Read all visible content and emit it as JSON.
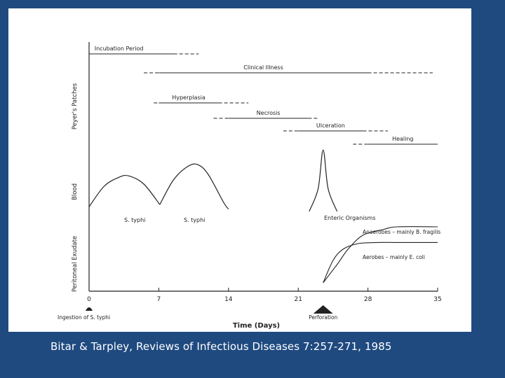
{
  "colors": {
    "background": "#1f4a80",
    "panel": "#ffffff",
    "ink": "#222222",
    "citation_text": "#ffffff"
  },
  "citation": "Bitar & Tarpley, Reviews of Infectious Diseases 7:257-271, 1985",
  "chart_data": {
    "type": "line",
    "title": "",
    "xlabel": "Time (Days)",
    "xlim": [
      0,
      35
    ],
    "x_ticks": [
      0,
      7,
      14,
      21,
      28,
      35
    ],
    "grid": false,
    "legend": "none",
    "panels": [
      {
        "name": "Peyer's Patches",
        "bars": [
          {
            "label": "Incubation Period",
            "solid": [
              0,
              8.5
            ],
            "dashed": [
              8.5,
              11
            ]
          },
          {
            "label": "Clinical Illness",
            "dashed_start": [
              5.5,
              7
            ],
            "solid": [
              7,
              28
            ],
            "dashed": [
              28,
              34.5
            ]
          },
          {
            "label": "Hyperplasia",
            "dashed_start": [
              6.5,
              7
            ],
            "solid": [
              7,
              13
            ],
            "dashed": [
              13,
              16
            ]
          },
          {
            "label": "Necrosis",
            "dashed_start": [
              12.5,
              14
            ],
            "solid": [
              14,
              22
            ],
            "dashed": [
              22,
              23
            ]
          },
          {
            "label": "Ulceration",
            "dashed_start": [
              19.5,
              21
            ],
            "solid": [
              21,
              27.5
            ],
            "dashed": [
              27.5,
              30
            ]
          },
          {
            "label": "Healing",
            "dashed_start": [
              26.5,
              28
            ],
            "solid": [
              28,
              35
            ]
          }
        ]
      },
      {
        "name": "Blood",
        "series": [
          {
            "label": "S. typhi",
            "x": [
              0,
              1.5,
              3,
              4,
              5.5,
              7.1
            ],
            "y": [
              0.1,
              0.55,
              0.75,
              0.78,
              0.6,
              0.15
            ]
          },
          {
            "label": "S. typhi",
            "x": [
              7.1,
              8.5,
              10,
              11,
              12,
              13.5,
              14
            ],
            "y": [
              0.15,
              0.7,
              1.0,
              1.02,
              0.8,
              0.2,
              0.05
            ]
          },
          {
            "label": "Enteric Organisms",
            "x": [
              22.1,
              23,
              23.5,
              24,
              24.9
            ],
            "y": [
              0.0,
              0.5,
              1.35,
              0.5,
              0.0
            ]
          }
        ]
      },
      {
        "name": "Peritoneal Exudate",
        "series": [
          {
            "label": "Anaerobes – mainly B. fragilis",
            "x": [
              23.5,
              25,
              26,
              27.5,
              29.5,
              31,
              35
            ],
            "y": [
              0.0,
              0.35,
              0.6,
              0.85,
              0.95,
              1.0,
              1.0
            ]
          },
          {
            "label": "Aerobes – mainly E. coli",
            "x": [
              23.5,
              24.5,
              25.5,
              27,
              29,
              31,
              35
            ],
            "y": [
              0.0,
              0.4,
              0.6,
              0.7,
              0.72,
              0.72,
              0.72
            ]
          }
        ]
      }
    ],
    "annotations": [
      {
        "text": "Ingestion of S. typhi",
        "x": 0,
        "marker": "dot"
      },
      {
        "text": "Perforation",
        "x": 23.5,
        "marker": "arrow-up"
      }
    ]
  }
}
